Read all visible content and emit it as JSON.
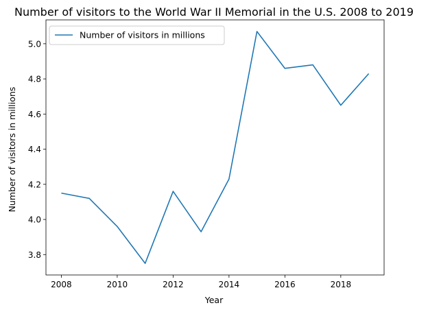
{
  "chart_data": {
    "type": "line",
    "title": "Number of visitors to the World War II Memorial in the U.S. 2008 to 2019",
    "xlabel": "Year",
    "ylabel": "Number of visitors in millions",
    "x": [
      2008,
      2009,
      2010,
      2011,
      2012,
      2013,
      2014,
      2015,
      2016,
      2017,
      2018,
      2019
    ],
    "series": [
      {
        "name": "Number of visitors in millions",
        "color": "#1f77b4",
        "values": [
          4.15,
          4.12,
          3.96,
          3.75,
          4.16,
          3.93,
          4.23,
          5.07,
          4.86,
          4.88,
          4.65,
          4.83
        ]
      }
    ],
    "xlim": [
      2007.45,
      2019.55
    ],
    "ylim": [
      3.684,
      5.136
    ],
    "xticks": [
      "2008",
      "2010",
      "2012",
      "2014",
      "2016",
      "2018"
    ],
    "yticks": [
      "3.8",
      "4.0",
      "4.2",
      "4.4",
      "4.6",
      "4.8",
      "5.0"
    ],
    "legend": "top-left",
    "grid": false
  }
}
